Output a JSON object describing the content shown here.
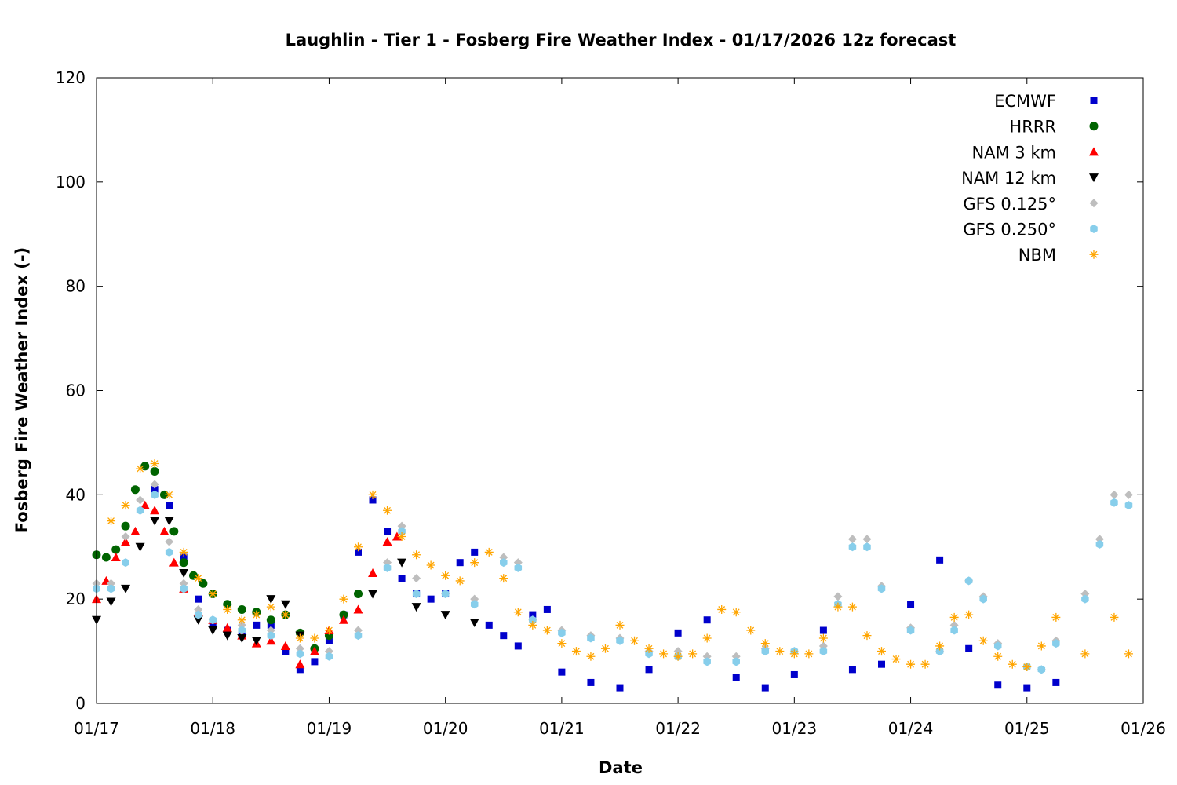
{
  "chart_data": {
    "type": "scatter",
    "title": "Laughlin - Tier 1 - Fosberg Fire Weather Index - 01/17/2026 12z forecast",
    "xlabel": "Date",
    "ylabel": "Fosberg Fire Weather Index (-)",
    "xlim": [
      "2026-01-17T00",
      "2026-01-26T00"
    ],
    "ylim": [
      0,
      120
    ],
    "x_ticks": [
      "01/17",
      "01/18",
      "01/19",
      "01/20",
      "01/21",
      "01/22",
      "01/23",
      "01/24",
      "01/25",
      "01/26"
    ],
    "y_ticks": [
      0,
      20,
      40,
      60,
      80,
      100,
      120
    ],
    "legend_position": "top-right",
    "grid": false,
    "series": [
      {
        "name": "ECMWF",
        "marker": "square",
        "color": "#0000cc",
        "x": [
          "2026-01-17T12",
          "2026-01-17T15",
          "2026-01-17T18",
          "2026-01-17T21",
          "2026-01-18T00",
          "2026-01-18T03",
          "2026-01-18T06",
          "2026-01-18T09",
          "2026-01-18T12",
          "2026-01-18T15",
          "2026-01-18T18",
          "2026-01-18T21",
          "2026-01-19T00",
          "2026-01-19T03",
          "2026-01-19T06",
          "2026-01-19T09",
          "2026-01-19T12",
          "2026-01-19T15",
          "2026-01-19T18",
          "2026-01-19T21",
          "2026-01-20T00",
          "2026-01-20T03",
          "2026-01-20T06",
          "2026-01-20T09",
          "2026-01-20T12",
          "2026-01-20T15",
          "2026-01-20T18",
          "2026-01-20T21",
          "2026-01-21T00",
          "2026-01-21T06",
          "2026-01-21T12",
          "2026-01-21T18",
          "2026-01-22T00",
          "2026-01-22T06",
          "2026-01-22T12",
          "2026-01-22T18",
          "2026-01-23T00",
          "2026-01-23T06",
          "2026-01-23T12",
          "2026-01-23T18",
          "2026-01-24T00",
          "2026-01-24T06",
          "2026-01-24T12",
          "2026-01-24T18",
          "2026-01-25T00",
          "2026-01-25T06"
        ],
        "y": [
          41,
          38,
          28,
          20,
          15,
          14,
          13,
          15,
          15,
          10,
          6.5,
          8,
          12,
          17,
          29,
          39,
          33,
          24,
          21,
          20,
          21,
          27,
          29,
          15,
          13,
          11,
          17,
          18,
          6,
          4,
          3,
          6.5,
          13.5,
          16,
          5,
          3,
          5.5,
          14,
          6.5,
          7.5,
          19,
          27.5,
          10.5,
          3.5,
          3,
          4
        ]
      },
      {
        "name": "HRRR",
        "marker": "circle",
        "color": "#006400",
        "x": [
          "2026-01-17T00",
          "2026-01-17T02",
          "2026-01-17T04",
          "2026-01-17T06",
          "2026-01-17T08",
          "2026-01-17T10",
          "2026-01-17T12",
          "2026-01-17T14",
          "2026-01-17T16",
          "2026-01-17T18",
          "2026-01-17T20",
          "2026-01-17T22",
          "2026-01-18T00",
          "2026-01-18T03",
          "2026-01-18T06",
          "2026-01-18T09",
          "2026-01-18T12",
          "2026-01-18T15",
          "2026-01-18T18",
          "2026-01-18T21",
          "2026-01-19T00",
          "2026-01-19T03",
          "2026-01-19T06"
        ],
        "y": [
          28.5,
          28,
          29.5,
          34,
          41,
          45.5,
          44.5,
          40,
          33,
          27,
          24.5,
          23,
          21,
          19,
          18,
          17.5,
          16,
          17,
          13.5,
          10.5,
          13,
          17,
          21
        ]
      },
      {
        "name": "NAM 3 km",
        "marker": "triangle-up",
        "color": "#ff0000",
        "x": [
          "2026-01-17T00",
          "2026-01-17T02",
          "2026-01-17T04",
          "2026-01-17T06",
          "2026-01-17T08",
          "2026-01-17T10",
          "2026-01-17T12",
          "2026-01-17T14",
          "2026-01-17T16",
          "2026-01-17T18",
          "2026-01-17T21",
          "2026-01-18T00",
          "2026-01-18T03",
          "2026-01-18T06",
          "2026-01-18T09",
          "2026-01-18T12",
          "2026-01-18T15",
          "2026-01-18T18",
          "2026-01-18T21",
          "2026-01-19T00",
          "2026-01-19T03",
          "2026-01-19T06",
          "2026-01-19T09",
          "2026-01-19T12",
          "2026-01-19T14"
        ],
        "y": [
          20,
          23.5,
          28,
          31,
          33,
          38,
          37,
          33,
          27,
          22,
          17.5,
          16,
          14.5,
          13,
          11.5,
          12,
          11,
          7.5,
          10,
          14,
          16,
          18,
          25,
          31,
          32
        ]
      },
      {
        "name": "NAM 12 km",
        "marker": "triangle-down",
        "color": "#000000",
        "x": [
          "2026-01-17T00",
          "2026-01-17T03",
          "2026-01-17T06",
          "2026-01-17T09",
          "2026-01-17T12",
          "2026-01-17T15",
          "2026-01-17T18",
          "2026-01-17T21",
          "2026-01-18T00",
          "2026-01-18T03",
          "2026-01-18T06",
          "2026-01-18T09",
          "2026-01-18T12",
          "2026-01-18T15",
          "2026-01-18T18",
          "2026-01-19T09",
          "2026-01-19T15",
          "2026-01-19T18",
          "2026-01-20T00",
          "2026-01-20T06"
        ],
        "y": [
          16,
          19.5,
          22,
          30,
          35,
          35,
          25,
          16,
          14,
          13,
          12.5,
          12,
          20,
          19,
          13,
          21,
          27,
          18.5,
          17,
          15.5
        ]
      },
      {
        "name": "GFS 0.125°",
        "marker": "diamond",
        "color": "#bebebe",
        "x": [
          "2026-01-17T00",
          "2026-01-17T03",
          "2026-01-17T06",
          "2026-01-17T09",
          "2026-01-17T12",
          "2026-01-17T15",
          "2026-01-17T18",
          "2026-01-17T21",
          "2026-01-18T00",
          "2026-01-18T06",
          "2026-01-18T12",
          "2026-01-18T18",
          "2026-01-19T00",
          "2026-01-19T06",
          "2026-01-19T12",
          "2026-01-19T15",
          "2026-01-19T18",
          "2026-01-20T00",
          "2026-01-20T06",
          "2026-01-20T12",
          "2026-01-20T15",
          "2026-01-20T18",
          "2026-01-21T00",
          "2026-01-21T06",
          "2026-01-21T12",
          "2026-01-21T18",
          "2026-01-22T00",
          "2026-01-22T06",
          "2026-01-22T12",
          "2026-01-22T18",
          "2026-01-23T00",
          "2026-01-23T06",
          "2026-01-23T09",
          "2026-01-23T12",
          "2026-01-23T15",
          "2026-01-23T18",
          "2026-01-24T00",
          "2026-01-24T06",
          "2026-01-24T09",
          "2026-01-24T12",
          "2026-01-24T15",
          "2026-01-24T18",
          "2026-01-25T00",
          "2026-01-25T03",
          "2026-01-25T06",
          "2026-01-25T12",
          "2026-01-25T15",
          "2026-01-25T18",
          "2026-01-25T21"
        ],
        "y": [
          23,
          23,
          32,
          39,
          42,
          31,
          23,
          18,
          16,
          15,
          14,
          10.5,
          10,
          14,
          27,
          34,
          24,
          21,
          20,
          28,
          27,
          16,
          14,
          13,
          12.5,
          10,
          10,
          9,
          9,
          10.5,
          10,
          11,
          20.5,
          31.5,
          31.5,
          22.5,
          14.5,
          10,
          15,
          23.5,
          20.5,
          11.5,
          7,
          6.5,
          12,
          21,
          31.5,
          40,
          40
        ]
      },
      {
        "name": "GFS 0.250°",
        "marker": "hexagon",
        "color": "#87ceeb",
        "x": [
          "2026-01-17T00",
          "2026-01-17T03",
          "2026-01-17T06",
          "2026-01-17T09",
          "2026-01-17T12",
          "2026-01-17T15",
          "2026-01-17T18",
          "2026-01-17T21",
          "2026-01-18T00",
          "2026-01-18T06",
          "2026-01-18T12",
          "2026-01-18T18",
          "2026-01-19T00",
          "2026-01-19T06",
          "2026-01-19T12",
          "2026-01-19T15",
          "2026-01-19T18",
          "2026-01-20T00",
          "2026-01-20T06",
          "2026-01-20T12",
          "2026-01-20T15",
          "2026-01-20T18",
          "2026-01-21T00",
          "2026-01-21T06",
          "2026-01-21T12",
          "2026-01-21T18",
          "2026-01-22T00",
          "2026-01-22T06",
          "2026-01-22T12",
          "2026-01-22T18",
          "2026-01-23T00",
          "2026-01-23T06",
          "2026-01-23T09",
          "2026-01-23T12",
          "2026-01-23T15",
          "2026-01-23T18",
          "2026-01-24T00",
          "2026-01-24T06",
          "2026-01-24T09",
          "2026-01-24T12",
          "2026-01-24T15",
          "2026-01-24T18",
          "2026-01-25T00",
          "2026-01-25T03",
          "2026-01-25T06",
          "2026-01-25T12",
          "2026-01-25T15",
          "2026-01-25T18",
          "2026-01-25T21"
        ],
        "y": [
          22,
          22,
          27,
          37,
          40,
          29,
          22,
          17,
          16,
          14,
          13,
          9.5,
          9,
          13,
          26,
          33,
          21,
          21,
          19,
          27,
          26,
          16,
          13.5,
          12.5,
          12,
          9.5,
          9,
          8,
          8,
          10,
          10,
          10,
          19,
          30,
          30,
          22,
          14,
          10,
          14,
          23.5,
          20,
          11,
          7,
          6.5,
          11.5,
          20,
          30.5,
          38.5,
          38
        ]
      },
      {
        "name": "NBM",
        "marker": "star",
        "color": "#ffa500",
        "x": [
          "2026-01-17T03",
          "2026-01-17T06",
          "2026-01-17T09",
          "2026-01-17T12",
          "2026-01-17T15",
          "2026-01-17T18",
          "2026-01-17T21",
          "2026-01-18T00",
          "2026-01-18T03",
          "2026-01-18T06",
          "2026-01-18T09",
          "2026-01-18T12",
          "2026-01-18T15",
          "2026-01-18T18",
          "2026-01-18T21",
          "2026-01-19T00",
          "2026-01-19T03",
          "2026-01-19T06",
          "2026-01-19T09",
          "2026-01-19T12",
          "2026-01-19T15",
          "2026-01-19T18",
          "2026-01-19T21",
          "2026-01-20T00",
          "2026-01-20T03",
          "2026-01-20T06",
          "2026-01-20T09",
          "2026-01-20T12",
          "2026-01-20T15",
          "2026-01-20T18",
          "2026-01-20T21",
          "2026-01-21T00",
          "2026-01-21T03",
          "2026-01-21T06",
          "2026-01-21T09",
          "2026-01-21T12",
          "2026-01-21T15",
          "2026-01-21T18",
          "2026-01-21T21",
          "2026-01-22T00",
          "2026-01-22T03",
          "2026-01-22T06",
          "2026-01-22T09",
          "2026-01-22T12",
          "2026-01-22T15",
          "2026-01-22T18",
          "2026-01-22T21",
          "2026-01-23T00",
          "2026-01-23T03",
          "2026-01-23T06",
          "2026-01-23T09",
          "2026-01-23T12",
          "2026-01-23T15",
          "2026-01-23T18",
          "2026-01-23T21",
          "2026-01-24T00",
          "2026-01-24T03",
          "2026-01-24T06",
          "2026-01-24T09",
          "2026-01-24T12",
          "2026-01-24T15",
          "2026-01-24T18",
          "2026-01-24T21",
          "2026-01-25T00",
          "2026-01-25T03",
          "2026-01-25T06",
          "2026-01-25T12",
          "2026-01-25T18",
          "2026-01-25T21"
        ],
        "y": [
          35,
          38,
          45,
          46,
          40,
          29,
          24,
          21,
          18,
          16,
          17,
          18.5,
          17,
          12.5,
          12.5,
          14,
          20,
          30,
          40,
          37,
          32,
          28.5,
          26.5,
          24.5,
          23.5,
          27,
          29,
          24,
          17.5,
          15,
          14,
          11.5,
          10,
          9,
          10.5,
          15,
          12,
          10.5,
          9.5,
          9,
          9.5,
          12.5,
          18,
          17.5,
          14,
          11.5,
          10,
          9.5,
          9.5,
          12.5,
          18.5,
          18.5,
          13,
          10,
          8.5,
          7.5,
          7.5,
          11,
          16.5,
          17,
          12,
          9,
          7.5,
          7,
          11,
          16.5,
          9.5,
          16.5,
          9.5
        ]
      }
    ]
  }
}
